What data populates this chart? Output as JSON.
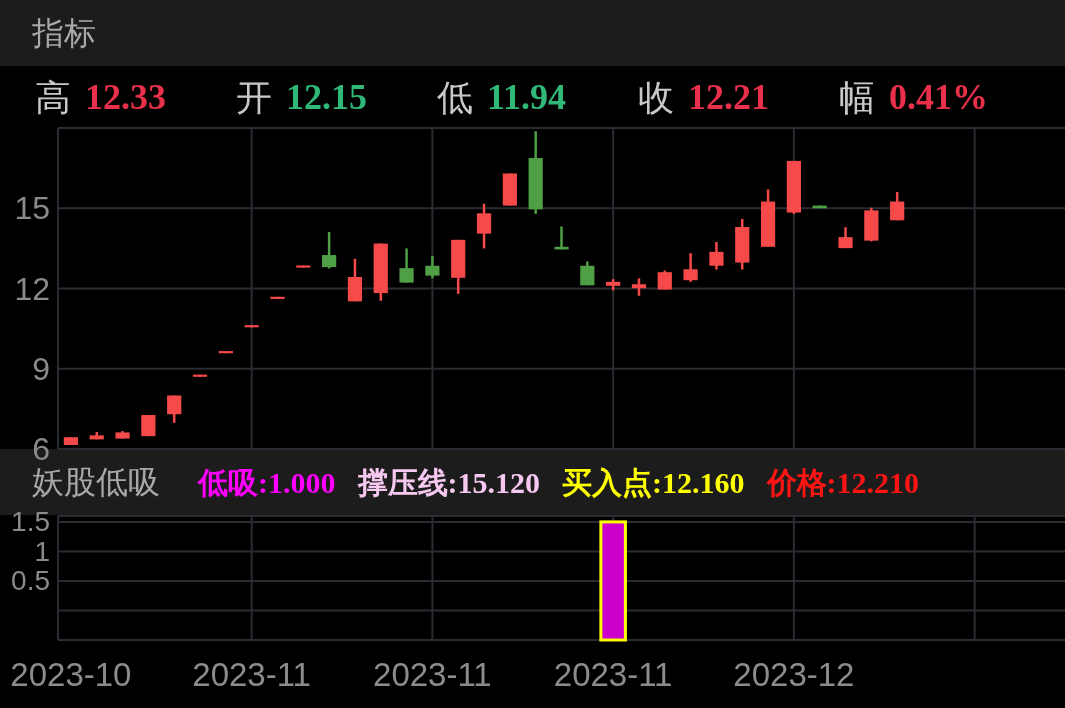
{
  "chart_data": [
    {
      "type": "candlestick",
      "title": "指标",
      "annotations": [
        "高 12.33",
        "开 12.15",
        "低 11.94",
        "收 12.21",
        "幅 0.41%"
      ],
      "categories": [
        null,
        null,
        null,
        null,
        null,
        null,
        null,
        null,
        null,
        null,
        null,
        null,
        null,
        null,
        null,
        null,
        null,
        null,
        null,
        null,
        null,
        null,
        null,
        null,
        null,
        null,
        null,
        null,
        null,
        null,
        null,
        null,
        null,
        null,
        null,
        null,
        null,
        null,
        null
      ],
      "ohlc": [
        [
          6.15,
          6.44,
          6.15,
          6.44
        ],
        [
          6.36,
          6.64,
          6.36,
          6.51
        ],
        [
          6.39,
          6.67,
          6.39,
          6.62
        ],
        [
          6.48,
          7.27,
          6.48,
          7.27
        ],
        [
          7.3,
          8.0,
          6.98,
          8.0
        ],
        [
          8.7,
          8.78,
          8.7,
          8.78
        ],
        [
          9.58,
          9.66,
          9.58,
          9.66
        ],
        [
          10.55,
          10.63,
          10.55,
          10.63
        ],
        [
          11.61,
          11.69,
          11.61,
          11.69
        ],
        [
          12.78,
          12.86,
          12.78,
          12.86
        ],
        [
          13.25,
          14.11,
          12.75,
          12.8
        ],
        [
          11.52,
          13.11,
          11.52,
          12.43
        ],
        [
          11.83,
          13.68,
          11.54,
          13.68
        ],
        [
          12.76,
          13.5,
          12.22,
          12.22
        ],
        [
          12.85,
          13.22,
          12.38,
          12.48
        ],
        [
          12.4,
          13.82,
          11.8,
          13.82
        ],
        [
          14.05,
          15.17,
          13.5,
          14.81
        ],
        [
          15.1,
          16.3,
          15.1,
          16.3
        ],
        [
          16.88,
          17.88,
          14.79,
          14.96
        ],
        [
          13.56,
          14.32,
          13.46,
          13.46
        ],
        [
          12.85,
          13.01,
          12.12,
          12.12
        ],
        [
          12.1,
          12.35,
          11.93,
          12.25
        ],
        [
          12.01,
          12.38,
          11.73,
          12.16
        ],
        [
          11.96,
          12.67,
          11.96,
          12.61
        ],
        [
          12.31,
          13.32,
          12.25,
          12.72
        ],
        [
          12.85,
          13.74,
          12.71,
          13.37
        ],
        [
          12.97,
          14.6,
          12.71,
          14.3
        ],
        [
          13.56,
          15.7,
          13.56,
          15.25
        ],
        [
          14.84,
          16.77,
          14.79,
          16.77
        ],
        [
          15.1,
          15.1,
          15.0,
          15.0
        ],
        [
          13.51,
          14.29,
          13.51,
          13.92
        ],
        [
          13.79,
          15.02,
          13.76,
          14.92
        ],
        [
          14.55,
          15.61,
          14.55,
          15.25
        ],
        null,
        null,
        null,
        null,
        null,
        null
      ],
      "colors": [
        "#f64a4a",
        "#f64a4a",
        "#f64a4a",
        "#f64a4a",
        "#f64a4a",
        "#f64a4a",
        "#f64a4a",
        "#f64a4a",
        "#f64a4a",
        "#f64a4a",
        "#4e9f45",
        "#f64a4a",
        "#f64a4a",
        "#4e9f45",
        "#4e9f45",
        "#f64a4a",
        "#f64a4a",
        "#f64a4a",
        "#4e9f45",
        "#4e9f45",
        "#4e9f45",
        "#f64a4a",
        "#f64a4a",
        "#f64a4a",
        "#f64a4a",
        "#f64a4a",
        "#f64a4a",
        "#f64a4a",
        "#f64a4a",
        "#4e9f45",
        "#f64a4a",
        "#f64a4a",
        "#f64a4a",
        null,
        null,
        null,
        null,
        null,
        null
      ],
      "ylim": [
        6,
        18
      ],
      "yticks": [
        6,
        9,
        12,
        15
      ],
      "grid": true,
      "tick_labels": "y"
    },
    {
      "type": "bar",
      "title": "妖股低吸",
      "annotations": [
        "低吸:1.000",
        "撑压线:15.120",
        "买入点:12.160",
        "价格:12.210"
      ],
      "categories": [
        "2023-10",
        null,
        null,
        null,
        null,
        null,
        null,
        "2023-11",
        null,
        null,
        null,
        null,
        null,
        null,
        "2023-11",
        null,
        null,
        null,
        null,
        null,
        null,
        "2023-11",
        null,
        null,
        null,
        null,
        null,
        null,
        "2023-12",
        null,
        null,
        null,
        null,
        null,
        null,
        null,
        null,
        null,
        null
      ],
      "values": [
        null,
        null,
        null,
        null,
        null,
        null,
        null,
        null,
        null,
        null,
        null,
        null,
        null,
        null,
        null,
        null,
        null,
        null,
        null,
        null,
        null,
        2.0,
        null,
        null,
        null,
        null,
        null,
        null,
        null,
        null,
        null,
        null,
        null,
        null,
        null,
        null,
        null,
        null,
        null
      ],
      "base": [
        null,
        null,
        null,
        null,
        null,
        null,
        null,
        null,
        null,
        null,
        null,
        null,
        null,
        null,
        null,
        null,
        null,
        null,
        null,
        null,
        null,
        -0.5,
        null,
        null,
        null,
        null,
        null,
        null,
        null,
        null,
        null,
        null,
        null,
        null,
        null,
        null,
        null,
        null,
        null
      ],
      "color": "#cc00cc",
      "ylim": [
        -0.5,
        1.6
      ],
      "yticks": [
        {
          "value": -0.5,
          "label": null
        },
        {
          "value": 0,
          "label": null
        },
        0.5,
        1,
        1.5
      ],
      "grid": true
    }
  ]
}
